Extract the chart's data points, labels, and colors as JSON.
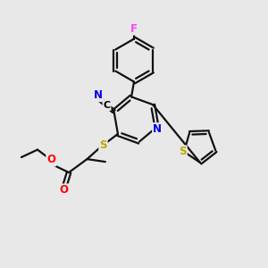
{
  "background_color": "#e8e8e8",
  "atom_colors": {
    "F": "#ff44ff",
    "N": "#0000ee",
    "O": "#ff0000",
    "S_thio": "#bbaa00",
    "C": "#000000",
    "default": "#000000"
  },
  "bond_color": "#111111",
  "bond_width": 1.6,
  "figsize": [
    3.0,
    3.0
  ],
  "dpi": 100
}
